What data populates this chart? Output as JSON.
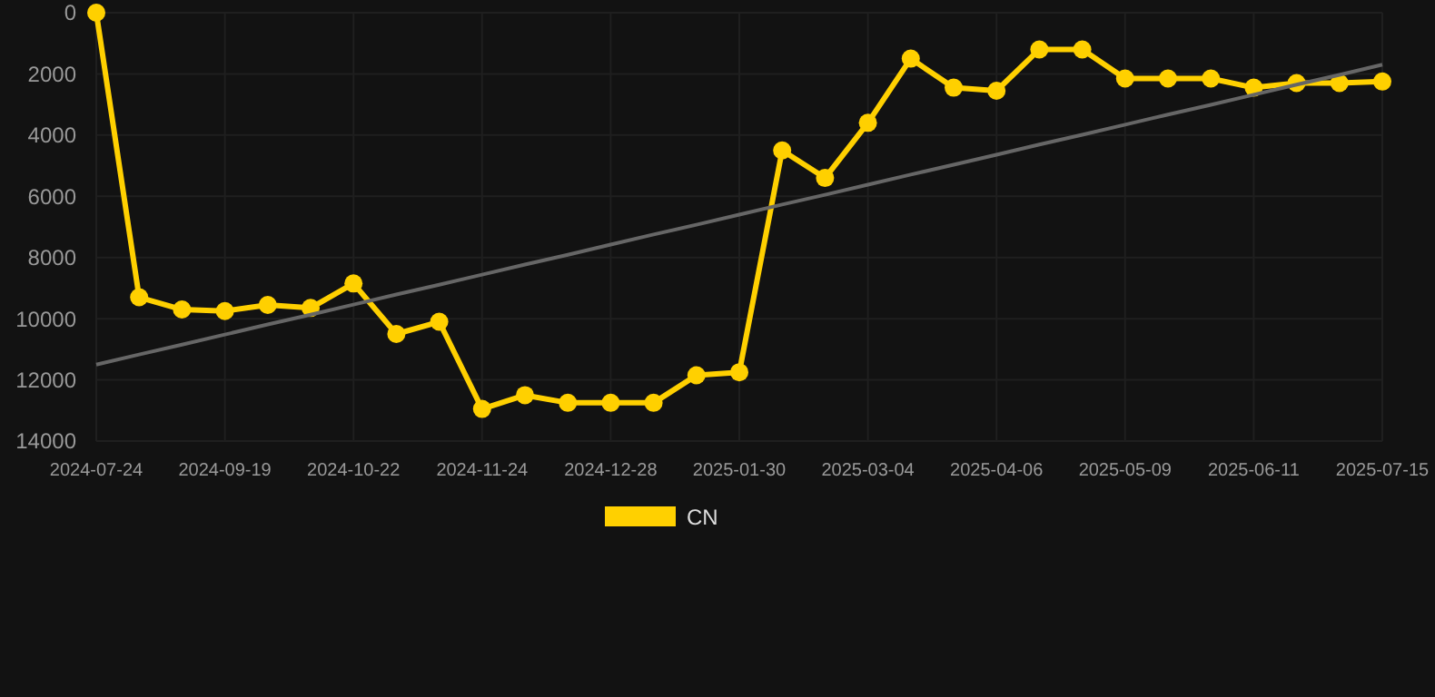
{
  "chart_data": {
    "type": "line",
    "categories": [
      "2024-07-24",
      null,
      null,
      "2024-09-19",
      null,
      null,
      "2024-10-22",
      null,
      null,
      "2024-11-24",
      null,
      null,
      "2024-12-28",
      null,
      null,
      "2025-01-30",
      null,
      null,
      "2025-03-04",
      null,
      null,
      "2025-04-06",
      null,
      null,
      "2025-05-09",
      null,
      null,
      "2025-06-11",
      null,
      null,
      "2025-07-15"
    ],
    "series": [
      {
        "name": "CN",
        "color": "#ffd000",
        "marker": "circle",
        "values": [
          0,
          9300,
          9700,
          9750,
          9550,
          9650,
          8850,
          10500,
          10100,
          12950,
          12500,
          12750,
          12750,
          12750,
          11850,
          11750,
          4500,
          5400,
          3600,
          1500,
          2450,
          2550,
          1200,
          1200,
          2150,
          2150,
          2150,
          2450,
          2300,
          2300,
          2250
        ]
      },
      {
        "type": "line",
        "color": "#666666",
        "marker": "none",
        "values": [
          11500,
          11170,
          10850,
          10520,
          10190,
          9870,
          9540,
          9210,
          8890,
          8560,
          8230,
          7910,
          7580,
          7250,
          6930,
          6600,
          6270,
          5950,
          5620,
          5290,
          4970,
          4640,
          4310,
          3990,
          3660,
          3330,
          3010,
          2680,
          2350,
          2030,
          1700
        ]
      }
    ],
    "ylim": [
      14000,
      0
    ],
    "yticks": [
      0,
      2000,
      4000,
      6000,
      8000,
      10000,
      12000,
      14000
    ],
    "grid": true,
    "legend": "bottom"
  }
}
